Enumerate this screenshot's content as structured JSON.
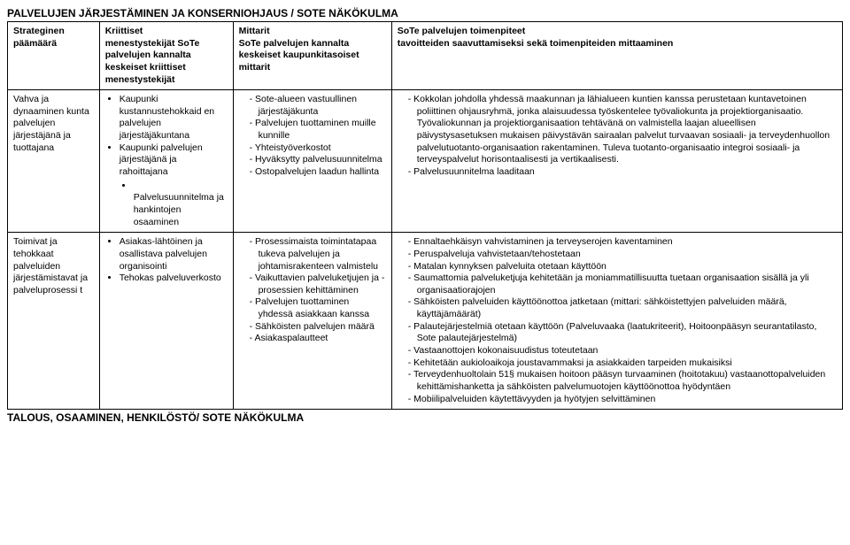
{
  "doc_title": "PALVELUJEN JÄRJESTÄMINEN JA KONSERNIOHJAUS / SOTE NÄKÖKULMA",
  "footer_title": "TALOUS, OSAAMINEN, HENKILÖSTÖ/ SOTE NÄKÖKULMA",
  "headers": {
    "c1a": "Strateginen",
    "c1b": "päämäärä",
    "c2a": "Kriittiset",
    "c2b": "menestystekijät SoTe palvelujen kannalta keskeiset kriittiset menestystekijät",
    "c3a": "Mittarit",
    "c3b": "SoTe palvelujen kannalta keskeiset kaupunkitasoiset mittarit",
    "c4a": "SoTe palvelujen toimenpiteet",
    "c4b": "tavoitteiden saavuttamiseksi sekä toimenpiteiden mittaaminen"
  },
  "row1": {
    "c1": "Vahva ja dynaaminen kunta palvelujen järjestäjänä ja tuottajana",
    "c2_items": [
      "Kaupunki kustannustehokkaid en palvelujen järjestäjäkuntana",
      "Kaupunki palvelujen järjestäjänä ja rahoittajana"
    ],
    "c2_sub": "Palvelusuunnitelma ja hankintojen osaaminen",
    "c3_items": [
      "Sote-alueen vastuullinen järjestäjäkunta",
      "Palvelujen tuottaminen muille kunnille",
      "Yhteistyöverkostot",
      "Hyväksytty palvelusuunnitelma",
      "Ostopalvelujen laadun hallinta"
    ],
    "c4_items": [
      "Kokkolan johdolla yhdessä maakunnan ja lähialueen kuntien kanssa perustetaan kuntavetoinen poliittinen ohjausryhmä, jonka alaisuudessa työskentelee työvaliokunta ja projektiorganisaatio. Työvaliokunnan ja projektiorganisaation tehtävänä on valmistella laajan alueellisen päivystysasetuksen mukaisen päivystävän sairaalan palvelut turvaavan sosiaali- ja terveydenhuollon palvelutuotanto-organisaation rakentaminen. Tuleva tuotanto-organisaatio integroi sosiaali- ja terveyspalvelut horisontaalisesti ja vertikaalisesti.",
      "Palvelusuunnitelma laaditaan"
    ]
  },
  "row2": {
    "c1": "Toimivat ja tehokkaat palveluiden järjestämistavat ja palveluprosessi t",
    "c2_items": [
      "Asiakas-lähtöinen ja osallistava palvelujen organisointi",
      "Tehokas palveluverkosto"
    ],
    "c3_items": [
      "Prosessimaista toimintatapaa tukeva palvelujen ja johtamisrakenteen valmistelu",
      "Vaikuttavien palveluketjujen ja - prosessien kehittäminen",
      "Palvelujen tuottaminen yhdessä asiakkaan kanssa",
      "Sähköisten palvelujen määrä",
      "Asiakaspalautteet"
    ],
    "c4_items": [
      "Ennaltaehkäisyn vahvistaminen ja terveyserojen kaventaminen",
      "Peruspalveluja vahvistetaan/tehostetaan",
      "Matalan kynnyksen palveluita otetaan käyttöön",
      "Saumattomia palveluketjuja kehitetään ja moniammatillisuutta tuetaan organisaation sisällä ja yli organisaatiorajojen",
      "Sähköisten palveluiden käyttöönottoa jatketaan (mittari: sähköistettyjen palveluiden määrä, käyttäjämäärät)",
      "Palautejärjestelmiä otetaan käyttöön (Palveluvaaka (laatukriteerit), Hoitoonpääsyn seurantatilasto, Sote palautejärjestelmä)",
      "Vastaanottojen kokonaisuudistus toteutetaan",
      "Kehitetään aukioloaikoja joustavammaksi ja asiakkaiden tarpeiden mukaisiksi",
      "Terveydenhuoltolain 51§ mukaisen hoitoon pääsyn turvaaminen (hoitotakuu) vastaanottopalveluiden kehittämishanketta ja sähköisten palvelumuotojen käyttöönottoa hyödyntäen",
      "Mobiilipalveluiden käytettävyyden ja hyötyjen selvittäminen"
    ]
  }
}
